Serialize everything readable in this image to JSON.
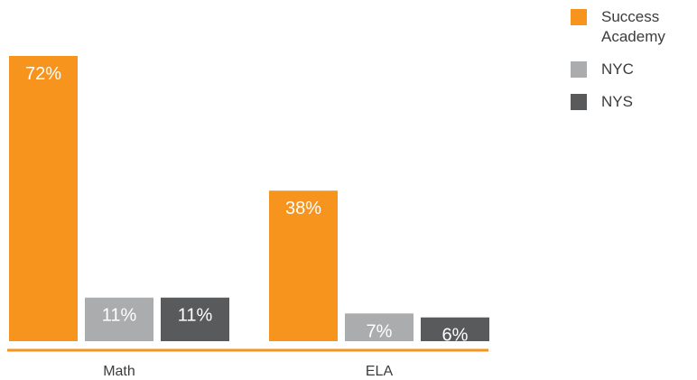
{
  "chart_data": {
    "type": "bar",
    "categories": [
      "Math",
      "ELA"
    ],
    "series": [
      {
        "name": "Success Academy",
        "values": [
          72,
          38
        ],
        "labels": [
          "72%",
          "38%"
        ],
        "color": "#f7941d"
      },
      {
        "name": "NYC",
        "values": [
          11,
          7
        ],
        "labels": [
          "11%",
          "7%"
        ],
        "color": "#abacae"
      },
      {
        "name": "NYS",
        "values": [
          11,
          6
        ],
        "labels": [
          "11%",
          "6%"
        ],
        "color": "#595a5c"
      }
    ],
    "title": "",
    "xlabel": "",
    "ylabel": "",
    "ylim": [
      0,
      72
    ],
    "grid": false,
    "legend": "top-right",
    "baseline_color": "#f7941d"
  }
}
